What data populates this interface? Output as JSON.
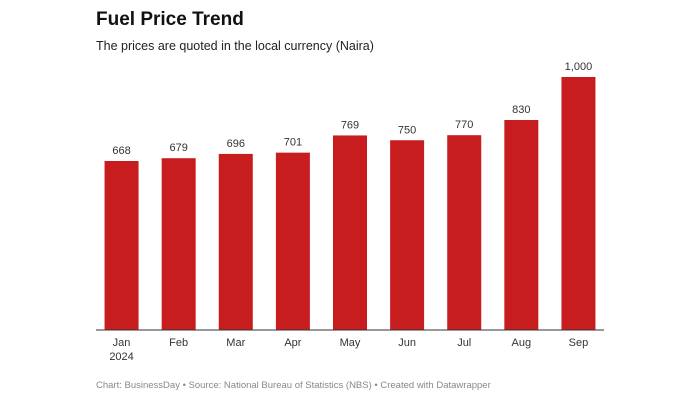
{
  "chart_data": {
    "type": "bar",
    "title": "Fuel Price Trend",
    "subtitle": "The prices are quoted in the local currency (Naira)",
    "categories": [
      "Jan 2024",
      "Feb",
      "Mar",
      "Apr",
      "May",
      "Jun",
      "Jul",
      "Aug",
      "Sep"
    ],
    "values": [
      668,
      679,
      696,
      701,
      769,
      750,
      770,
      830,
      1000
    ],
    "value_labels": [
      "668",
      "679",
      "696",
      "701",
      "769",
      "750",
      "770",
      "830",
      "1,000"
    ],
    "color": "#c81d1f",
    "ylim": [
      0,
      1000
    ],
    "footer": "Chart: BusinessDay • Source: National Bureau of Statistics (NBS) • Created with Datawrapper"
  }
}
